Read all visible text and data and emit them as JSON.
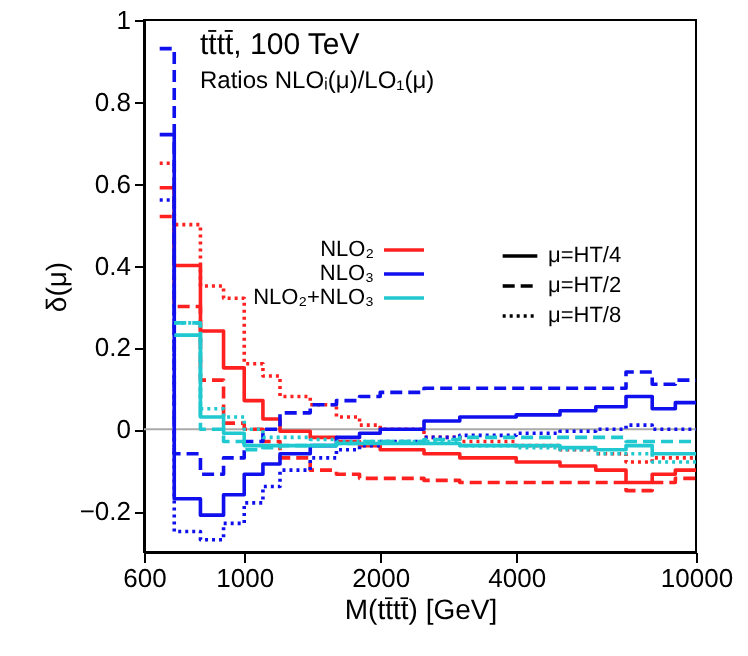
{
  "chart_data": {
    "type": "step",
    "title": "tt̄tt̄, 100 TeV",
    "subtitle": "Ratios NLOᵢ(μ)/LO₁(μ)",
    "xlabel": "M(tt̄tt̄) [GeV]",
    "ylabel": "δ(μ)",
    "log": "x",
    "xlim": [
      600,
      10000
    ],
    "xticks": [
      600,
      1000,
      2000,
      4000,
      10000
    ],
    "ylim": [
      -0.3,
      1
    ],
    "yticks": [
      -0.2,
      0,
      0.2,
      0.4,
      0.6,
      0.8,
      1
    ],
    "grid": false,
    "legend": "top",
    "x": [
      650,
      700,
      800,
      900,
      1000,
      1100,
      1200,
      1400,
      1600,
      1800,
      2000,
      2500,
      3000,
      4000,
      5000,
      6000,
      7000,
      8000,
      9000,
      10000
    ],
    "series": [
      {
        "name": "NLO₂",
        "color": "#ff2020",
        "line_style": "solid",
        "values": [
          0.59,
          0.4,
          0.24,
          0.15,
          0.07,
          0.025,
          -0.005,
          -0.02,
          -0.03,
          -0.04,
          -0.05,
          -0.06,
          -0.07,
          -0.08,
          -0.09,
          -0.1,
          -0.13,
          -0.11,
          -0.1,
          -0.1
        ]
      },
      {
        "color": "#ff2020",
        "line_style": "dashed",
        "values": [
          0.52,
          0.3,
          0.12,
          0.015,
          0.0,
          -0.03,
          -0.07,
          -0.1,
          -0.11,
          -0.12,
          -0.12,
          -0.125,
          -0.13,
          -0.13,
          -0.13,
          -0.13,
          -0.15,
          -0.13,
          -0.12,
          -0.12
        ]
      },
      {
        "color": "#ff2020",
        "line_style": "dotted",
        "values": [
          0.65,
          0.5,
          0.35,
          0.32,
          0.16,
          0.13,
          0.08,
          0.06,
          0.03,
          0.01,
          0.0,
          -0.02,
          -0.03,
          -0.04,
          -0.05,
          -0.06,
          -0.08,
          -0.07,
          -0.07,
          -0.07
        ]
      },
      {
        "name": "NLO₃",
        "color": "#1010ee",
        "line_style": "solid",
        "values": [
          0.72,
          -0.17,
          -0.21,
          -0.16,
          -0.11,
          -0.085,
          -0.06,
          -0.04,
          -0.02,
          -0.01,
          0.0,
          0.02,
          0.03,
          0.035,
          0.045,
          0.055,
          0.08,
          0.05,
          0.065,
          0.065
        ]
      },
      {
        "color": "#1010ee",
        "line_style": "dashed",
        "values": [
          0.93,
          -0.06,
          -0.11,
          -0.07,
          -0.03,
          0.0,
          0.04,
          0.06,
          0.07,
          0.08,
          0.09,
          0.1,
          0.1,
          0.1,
          0.1,
          0.1,
          0.14,
          0.11,
          0.12,
          0.12
        ]
      },
      {
        "color": "#1010ee",
        "line_style": "dotted",
        "values": [
          0.56,
          -0.25,
          -0.27,
          -0.23,
          -0.18,
          -0.14,
          -0.1,
          -0.07,
          -0.05,
          -0.04,
          -0.03,
          -0.02,
          -0.015,
          -0.01,
          -0.005,
          0.0,
          0.01,
          0.0,
          0.0,
          0.0
        ]
      },
      {
        "name": "NLO₂+NLO₃",
        "color": "#20c8d0",
        "line_style": "solid",
        "values": [
          null,
          0.23,
          0.03,
          -0.01,
          -0.04,
          -0.04,
          -0.04,
          -0.04,
          -0.035,
          -0.035,
          -0.035,
          -0.035,
          -0.04,
          -0.04,
          -0.045,
          -0.05,
          -0.04,
          -0.06,
          -0.06,
          -0.06
        ]
      },
      {
        "color": "#20c8d0",
        "line_style": "dashed",
        "values": [
          null,
          0.26,
          0.0,
          -0.03,
          -0.05,
          -0.045,
          -0.04,
          -0.04,
          -0.035,
          -0.03,
          -0.03,
          -0.025,
          -0.02,
          -0.02,
          -0.02,
          -0.02,
          -0.03,
          -0.03,
          -0.03,
          -0.03
        ]
      },
      {
        "color": "#20c8d0",
        "line_style": "dotted",
        "values": [
          null,
          0.26,
          0.05,
          0.03,
          0.0,
          -0.02,
          -0.02,
          -0.025,
          -0.03,
          -0.03,
          -0.03,
          -0.03,
          -0.04,
          -0.045,
          -0.05,
          -0.06,
          -0.06,
          -0.08,
          -0.08,
          -0.08
        ]
      }
    ],
    "ref_lines": [
      {
        "axis": "y",
        "value": 0,
        "color": "#aaaaaa"
      }
    ],
    "annotations": [
      "μ=HT/4",
      "μ=HT/2",
      "μ=HT/8"
    ]
  }
}
